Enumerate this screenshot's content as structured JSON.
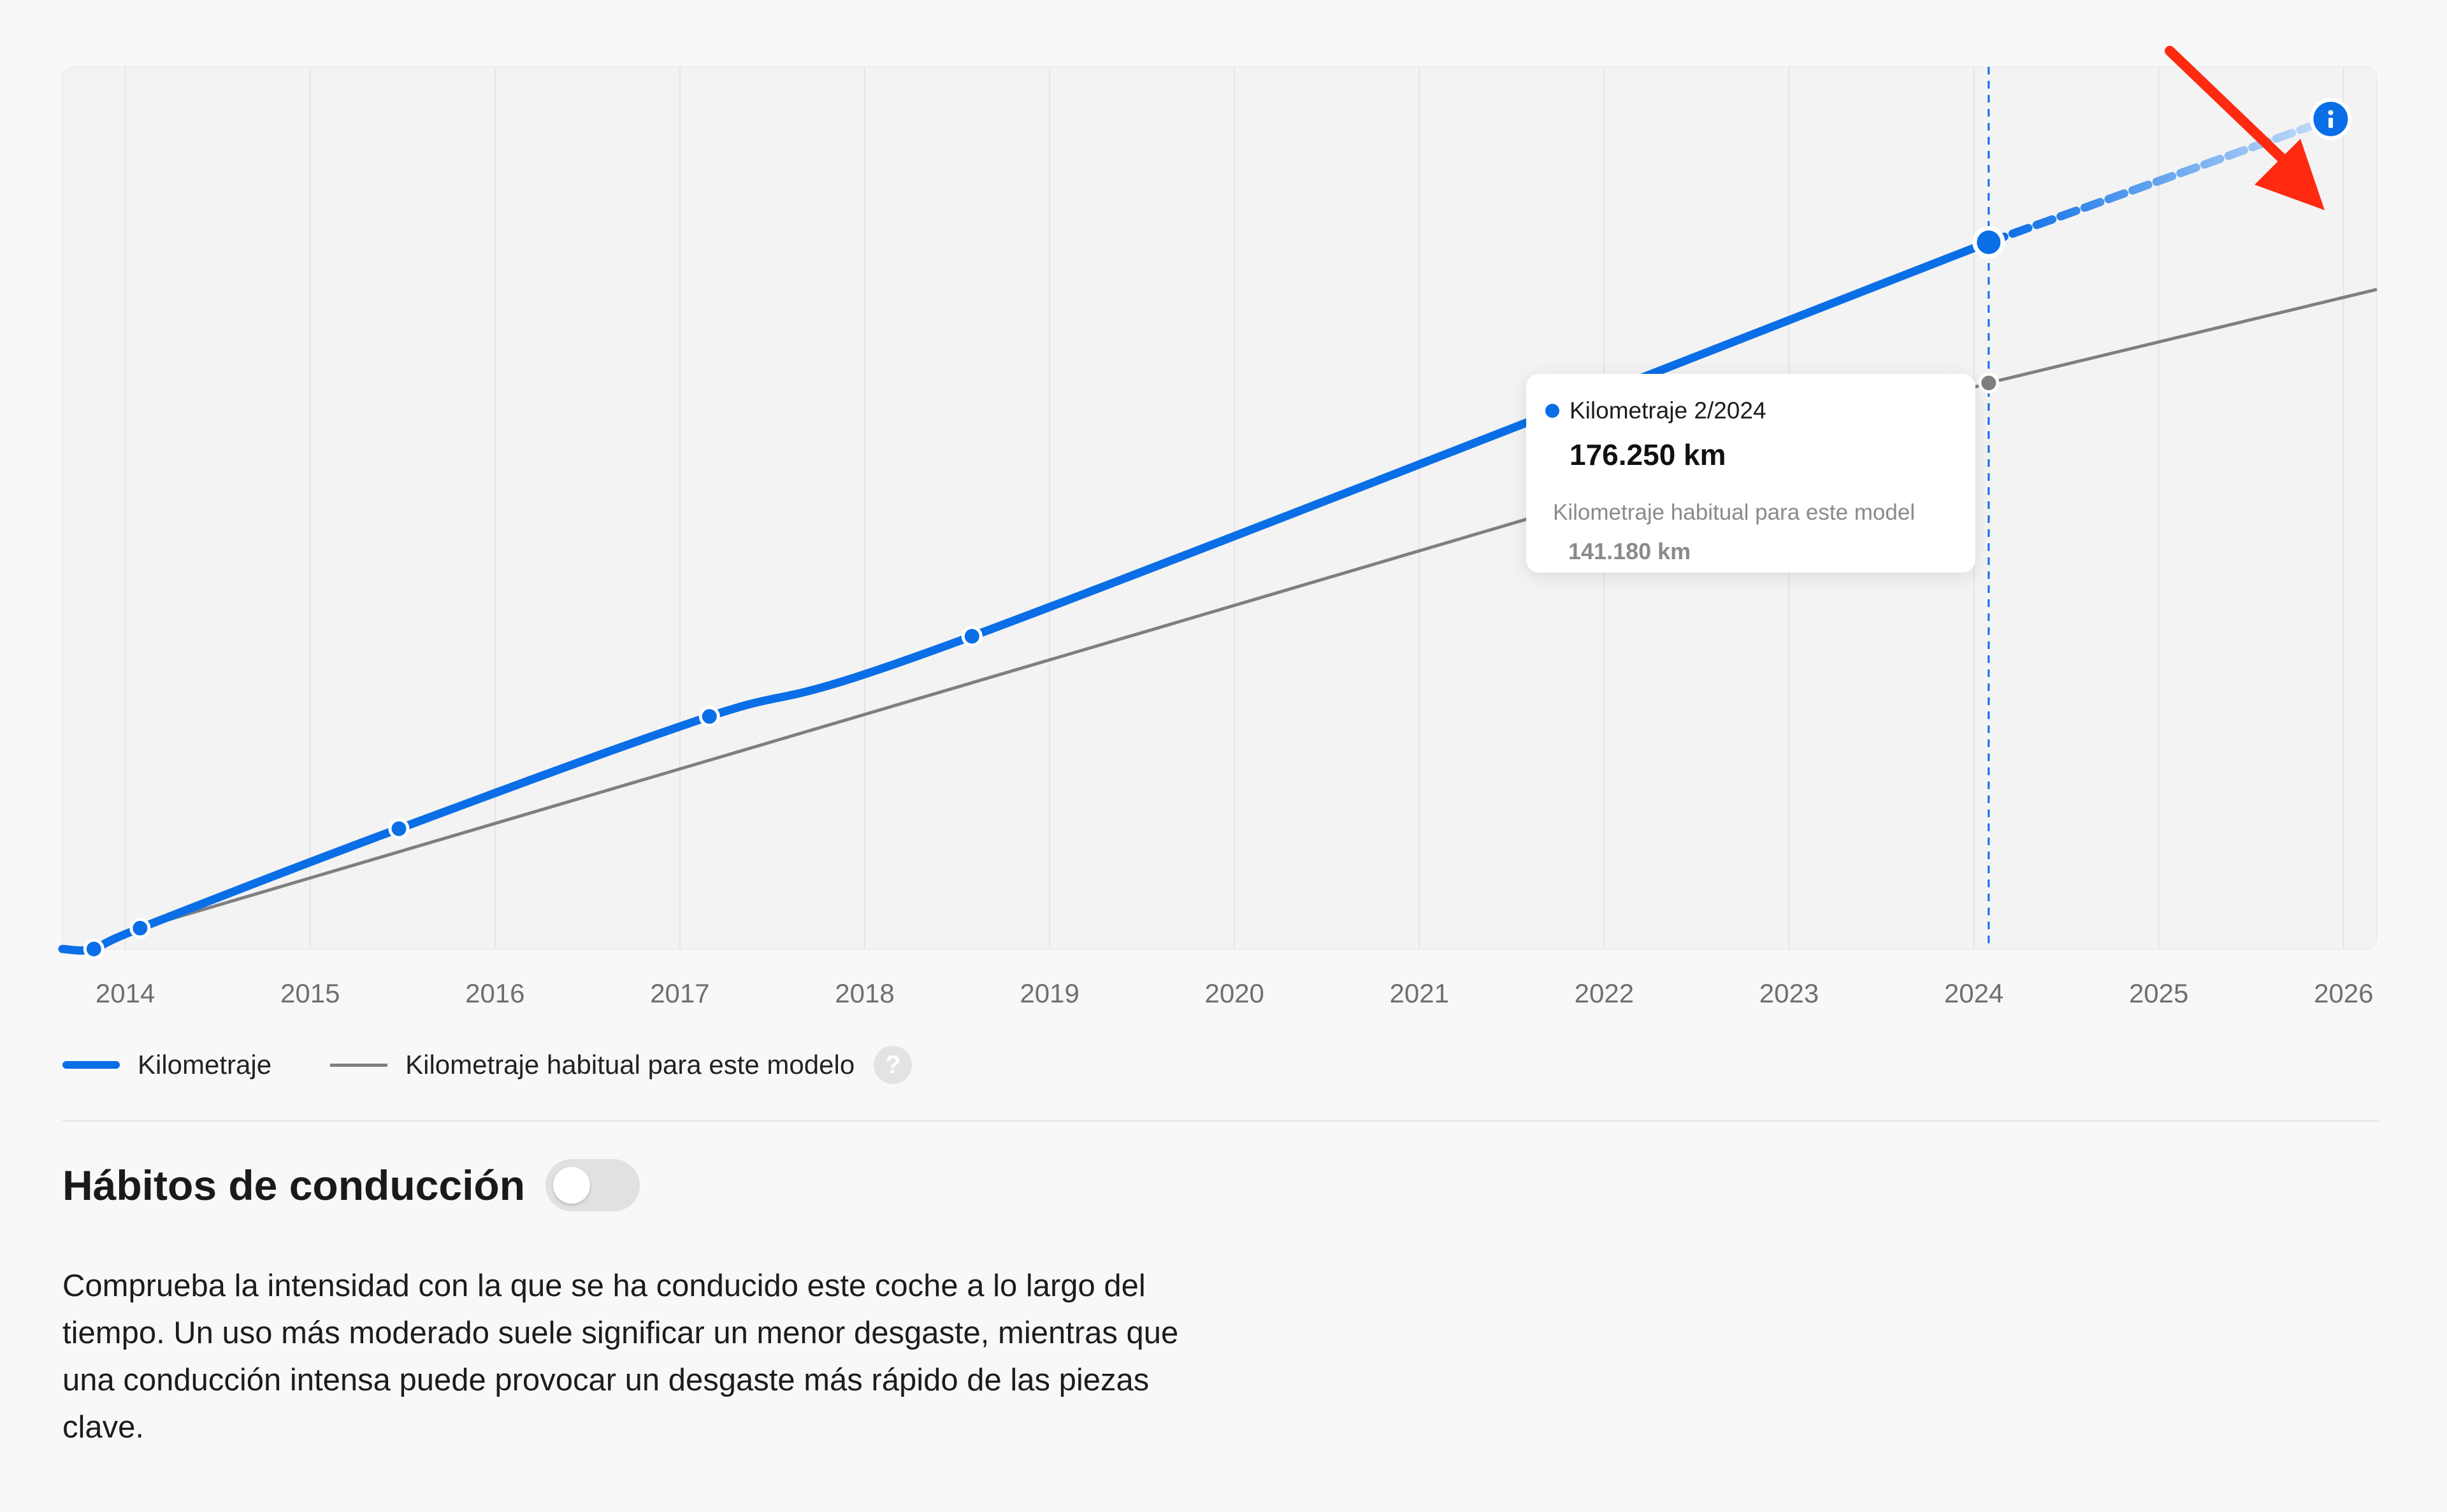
{
  "chart_data": {
    "type": "line",
    "x_axis": {
      "ticks": [
        "2014",
        "2015",
        "2016",
        "2017",
        "2018",
        "2019",
        "2020",
        "2021",
        "2022",
        "2023",
        "2024",
        "2025",
        "2026"
      ],
      "range": [
        2013.66,
        2026.18
      ]
    },
    "y_axis": {
      "unit": "km",
      "range": [
        0,
        220000
      ],
      "labels_visible": false
    },
    "grid": "vertical",
    "series": [
      {
        "name": "Kilometraje",
        "color": "#0a6ee6",
        "points": [
          {
            "x": 2013.83,
            "y": 0
          },
          {
            "x": 2014.08,
            "y": 5200
          },
          {
            "x": 2015.48,
            "y": 30000
          },
          {
            "x": 2017.16,
            "y": 58000
          },
          {
            "x": 2018.58,
            "y": 78000
          },
          {
            "x": 2024.08,
            "y": 176250
          }
        ],
        "projection": [
          {
            "x": 2024.08,
            "y": 176250
          },
          {
            "x": 2025.93,
            "y": 207000
          }
        ]
      },
      {
        "name": "Kilometraje habitual para este modelo",
        "color": "#7f7f7f",
        "points": [
          {
            "x": 2014.08,
            "y": 5200
          },
          {
            "x": 2024.08,
            "y": 141180
          },
          {
            "x": 2026.18,
            "y": 164500
          }
        ]
      }
    ],
    "highlight_x": 2024.08,
    "legend_position": "bottom-left"
  },
  "tooltip": {
    "title": "Kilometraje 2/2024",
    "value": "176.250 km",
    "sub_label": "Kilometraje habitual para este model",
    "sub_value": "141.180 km"
  },
  "legend": {
    "items": [
      {
        "label": "Kilometraje",
        "color": "#0a6ee6"
      },
      {
        "label": "Kilometraje habitual para este modelo",
        "color": "#7f7f7f"
      }
    ],
    "help": "?"
  },
  "section": {
    "title": "Hábitos de conducción",
    "toggle_on": false,
    "description": "Comprueba la intensidad con la que se ha conducido este coche a lo largo del tiempo. Un uso más moderado suele significar un menor desgaste, mientras que una conducción intensa puede provocar un desgaste más rápido de las piezas clave."
  },
  "projection_info_icon": "info-icon",
  "annotation_arrow_color": "#ff2a10"
}
